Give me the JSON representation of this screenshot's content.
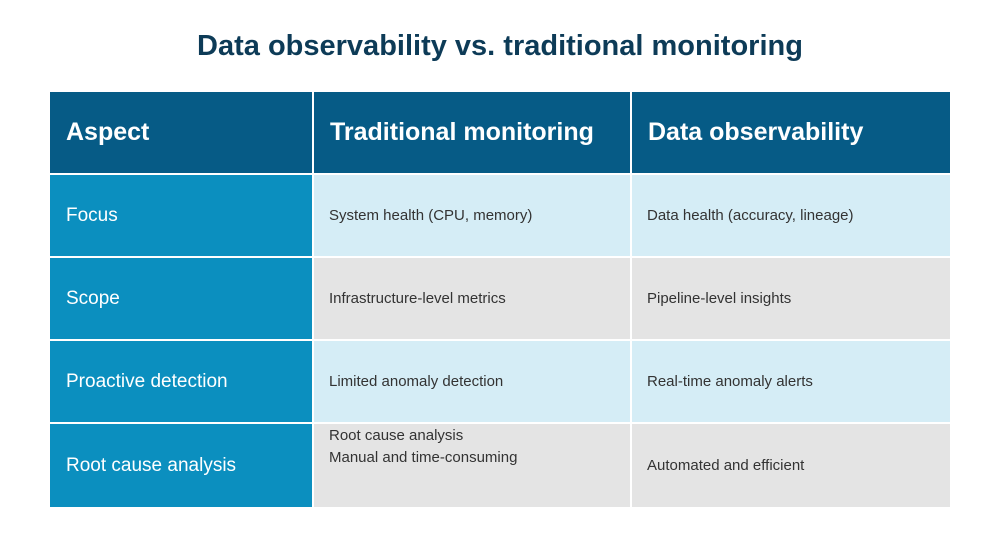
{
  "title": "Data observability vs. traditional monitoring",
  "table": {
    "headers": [
      "Aspect",
      "Traditional monitoring",
      "Data observability"
    ],
    "rows": [
      {
        "aspect": "Focus",
        "traditional": [
          "System health (CPU, memory)"
        ],
        "observability": "Data health (accuracy, lineage)"
      },
      {
        "aspect": "Scope",
        "traditional": [
          "Infrastructure-level metrics"
        ],
        "observability": "Pipeline-level insights"
      },
      {
        "aspect": "Proactive detection",
        "traditional": [
          "Limited anomaly detection"
        ],
        "observability": "Real-time anomaly alerts"
      },
      {
        "aspect": "Root cause analysis",
        "traditional": [
          "Root cause analysis",
          "Manual and time-consuming"
        ],
        "observability": "Automated and efficient"
      }
    ]
  },
  "colors": {
    "title": "#0d3b57",
    "header_bg": "#065b86",
    "aspect_bg": "#0b8fbf",
    "row_light": "#d5edf6",
    "row_grey": "#e4e4e4"
  }
}
